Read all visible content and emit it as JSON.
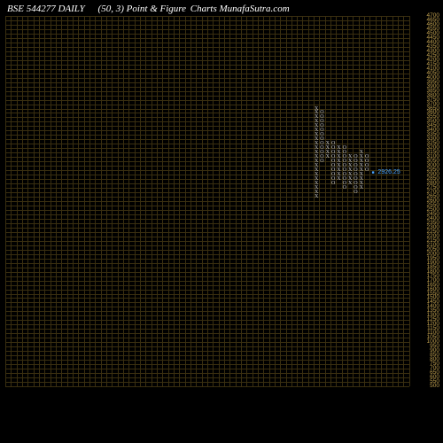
{
  "header": {
    "symbol": "BSE 544277 DAILY",
    "params": "(50,  3) Point & Figure",
    "source_label": "Charts",
    "source_name": "MunafaSutra.com"
  },
  "chart": {
    "type": "point-and-figure",
    "background_color": "#000000",
    "grid_color": "#3a2f10",
    "axis_label_color": "#c0a050",
    "text_color": "#ffffff",
    "marker_color": "#4da6ff",
    "box_size": 50,
    "reversal": 3,
    "current_price": "2926.25",
    "y_max": 4700,
    "y_min": 500,
    "y_step": 50,
    "grid_cols": 72,
    "grid_rows": 64,
    "cell_h": 6.53,
    "cell_w": 6.33,
    "columns": [
      {
        "col": 55,
        "type": "X",
        "top_value": 3650,
        "bottom_value": 2650
      },
      {
        "col": 56,
        "type": "O",
        "top_value": 3600,
        "bottom_value": 3050
      },
      {
        "col": 57,
        "type": "X",
        "top_value": 3250,
        "bottom_value": 3100
      },
      {
        "col": 58,
        "type": "O",
        "top_value": 3250,
        "bottom_value": 2800
      },
      {
        "col": 59,
        "type": "X",
        "top_value": 3200,
        "bottom_value": 2850
      },
      {
        "col": 60,
        "type": "O",
        "top_value": 3200,
        "bottom_value": 2750
      },
      {
        "col": 61,
        "type": "X",
        "top_value": 3100,
        "bottom_value": 2800
      },
      {
        "col": 62,
        "type": "O",
        "top_value": 3100,
        "bottom_value": 2700
      },
      {
        "col": 63,
        "type": "X",
        "top_value": 3150,
        "bottom_value": 2750
      },
      {
        "col": 64,
        "type": "O",
        "top_value": 3100,
        "bottom_value": 2950
      }
    ]
  }
}
